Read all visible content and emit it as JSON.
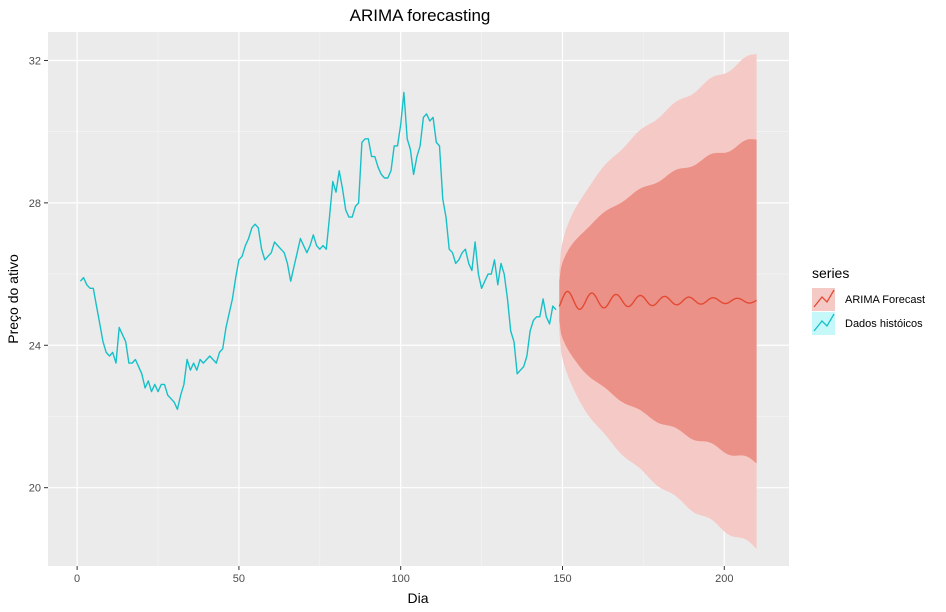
{
  "chart_data": {
    "type": "line",
    "title": "ARIMA forecasting",
    "xlabel": "Dia",
    "ylabel": "Preço do ativo",
    "xlim": [
      -9,
      220
    ],
    "ylim": [
      17.8,
      32.8
    ],
    "x_ticks": [
      0,
      50,
      100,
      150,
      200
    ],
    "y_ticks": [
      20,
      24,
      28,
      32
    ],
    "grid": true,
    "legend": {
      "title": "series",
      "placement": "right",
      "entries": [
        "ARIMA Forecast",
        "Dados históicos"
      ]
    },
    "colors": {
      "forecast": "#e34a33",
      "historical": "#17c0c8",
      "band_80": "#ec9188",
      "band_95": "#f5c9c5",
      "panel": "#ebebeb",
      "grid_major": "#ffffff",
      "grid_minor": "#f5f5f5"
    },
    "series": [
      {
        "name": "Dados históicos",
        "x_start": 1,
        "values": [
          25.8,
          25.9,
          25.7,
          25.6,
          25.6,
          25.1,
          24.6,
          24.1,
          23.8,
          23.7,
          23.8,
          23.5,
          24.5,
          24.3,
          24.1,
          23.5,
          23.5,
          23.6,
          23.4,
          23.2,
          22.8,
          23.0,
          22.7,
          22.9,
          22.7,
          22.9,
          22.9,
          22.6,
          22.5,
          22.4,
          22.2,
          22.6,
          22.9,
          23.6,
          23.3,
          23.5,
          23.3,
          23.6,
          23.5,
          23.6,
          23.7,
          23.6,
          23.5,
          23.8,
          23.9,
          24.5,
          24.9,
          25.3,
          25.9,
          26.4,
          26.5,
          26.8,
          27.0,
          27.3,
          27.4,
          27.3,
          26.7,
          26.4,
          26.5,
          26.6,
          26.9,
          26.8,
          26.7,
          26.6,
          26.3,
          25.8,
          26.2,
          26.6,
          27.0,
          26.8,
          26.6,
          26.8,
          27.1,
          26.8,
          26.7,
          26.8,
          26.7,
          27.6,
          28.6,
          28.3,
          28.9,
          28.4,
          27.8,
          27.6,
          27.6,
          27.9,
          28.0,
          29.7,
          29.8,
          29.8,
          29.3,
          29.3,
          29.0,
          28.8,
          28.7,
          28.7,
          28.9,
          29.6,
          29.6,
          30.2,
          31.1,
          29.8,
          29.5,
          28.8,
          29.3,
          29.6,
          30.4,
          30.5,
          30.3,
          30.4,
          29.7,
          29.6,
          28.1,
          27.6,
          26.7,
          26.6,
          26.3,
          26.4,
          26.6,
          26.7,
          26.3,
          26.1,
          26.9,
          26.0,
          25.6,
          25.8,
          26.0,
          26.0,
          26.4,
          25.7,
          26.3,
          26.0,
          25.3,
          24.4,
          24.1,
          23.2,
          23.3,
          23.4,
          23.7,
          24.4,
          24.7,
          24.8,
          24.8,
          25.3,
          24.8,
          24.6,
          25.1,
          25.0
        ]
      },
      {
        "name": "ARIMA Forecast",
        "x_start": 149,
        "x_end": 210,
        "mean": 25.25,
        "oscillation_amplitude_start": 0.28,
        "oscillation_period": 7.5,
        "band_80": {
          "lower_start": 24.7,
          "lower_end": 20.7,
          "upper_start": 25.8,
          "upper_end": 29.8
        },
        "band_95": {
          "lower_start": 24.4,
          "lower_end": 18.3,
          "upper_start": 26.1,
          "upper_end": 32.2
        }
      }
    ]
  }
}
